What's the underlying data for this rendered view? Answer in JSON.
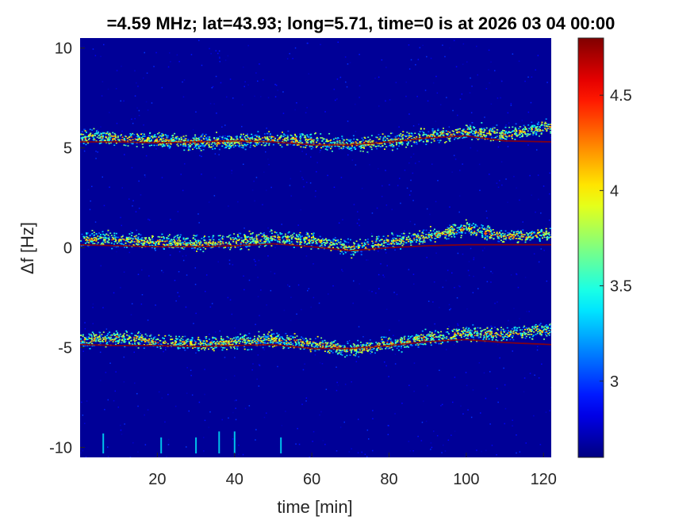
{
  "chart_data": {
    "type": "heatmap",
    "title": "=4.59 MHz;  lat=43.93; long=5.71, time=0 is at 2026 03 04 00:00",
    "xlabel": "time [min]",
    "ylabel": "Δf [Hz]",
    "xlim": [
      0,
      122
    ],
    "ylim": [
      -10.5,
      10.5
    ],
    "x_ticks": [
      20,
      40,
      60,
      80,
      100,
      120
    ],
    "y_ticks": [
      -10,
      -5,
      0,
      5,
      10
    ],
    "colorbar": {
      "colormap": "jet",
      "range": [
        2.6,
        4.8
      ],
      "ticks": [
        3,
        3.5,
        4,
        4.5
      ]
    },
    "background_level": 2.65,
    "traces": [
      {
        "kind": "doppler-band",
        "x": [
          0,
          10,
          20,
          30,
          40,
          50,
          60,
          70,
          80,
          90,
          100,
          110,
          122
        ],
        "center": [
          5.6,
          5.5,
          5.4,
          5.3,
          5.35,
          5.5,
          5.35,
          5.2,
          5.35,
          5.6,
          5.85,
          5.7,
          6.1
        ],
        "reference": [
          5.3,
          5.3,
          5.25,
          5.3,
          5.35,
          5.3,
          5.15,
          5.15,
          5.3,
          5.5,
          5.6,
          5.35,
          5.3
        ]
      },
      {
        "kind": "doppler-band",
        "x": [
          0,
          10,
          20,
          30,
          40,
          50,
          60,
          70,
          80,
          90,
          100,
          110,
          122
        ],
        "center": [
          0.5,
          0.4,
          0.3,
          0.25,
          0.35,
          0.55,
          0.4,
          0.0,
          0.35,
          0.6,
          1.0,
          0.6,
          0.7
        ],
        "reference": [
          0.15,
          0.1,
          0.05,
          0.05,
          0.1,
          0.2,
          0.05,
          -0.15,
          0.0,
          0.1,
          0.15,
          0.15,
          0.15
        ]
      },
      {
        "kind": "doppler-band",
        "x": [
          0,
          10,
          20,
          30,
          40,
          50,
          60,
          70,
          80,
          90,
          100,
          110,
          122
        ],
        "center": [
          -4.6,
          -4.5,
          -4.65,
          -4.8,
          -4.7,
          -4.55,
          -4.75,
          -5.1,
          -4.8,
          -4.5,
          -4.25,
          -4.3,
          -4.05
        ],
        "reference": [
          -4.85,
          -4.9,
          -4.9,
          -4.95,
          -4.9,
          -4.85,
          -5.05,
          -5.05,
          -4.9,
          -4.7,
          -4.6,
          -4.75,
          -4.85
        ]
      }
    ],
    "vertical_streaks": [
      {
        "x": 6,
        "y_range": [
          -10.3,
          -9.3
        ]
      },
      {
        "x": 21,
        "y_range": [
          -10.3,
          -9.5
        ]
      },
      {
        "x": 30,
        "y_range": [
          -10.3,
          -9.5
        ]
      },
      {
        "x": 36,
        "y_range": [
          -10.3,
          -9.2
        ]
      },
      {
        "x": 40,
        "y_range": [
          -10.3,
          -9.2
        ]
      },
      {
        "x": 52,
        "y_range": [
          -10.3,
          -9.5
        ]
      }
    ]
  }
}
